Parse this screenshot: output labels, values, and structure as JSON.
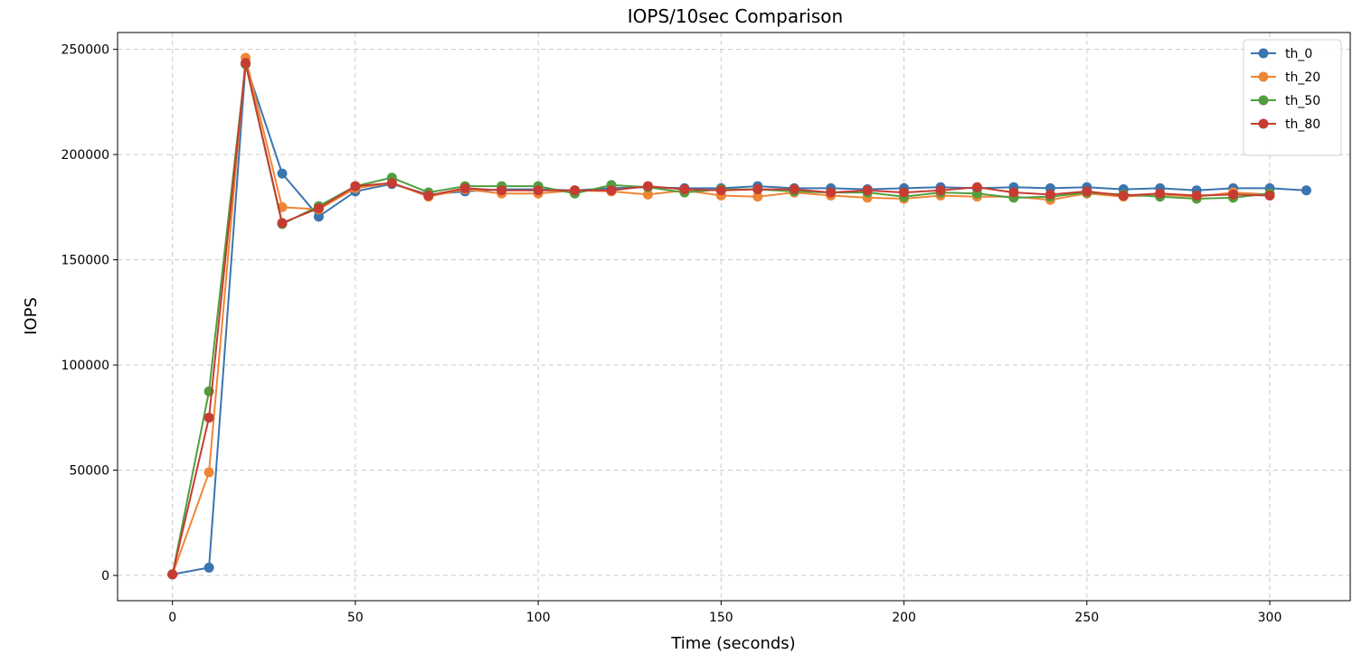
{
  "chart_data": {
    "type": "line",
    "title": "IOPS/10sec Comparison",
    "xlabel": "Time (seconds)",
    "ylabel": "IOPS",
    "xlim": [
      -15,
      322
    ],
    "ylim": [
      -12000,
      258000
    ],
    "xticks": [
      0,
      50,
      100,
      150,
      200,
      250,
      300
    ],
    "yticks": [
      0,
      50000,
      100000,
      150000,
      200000,
      250000
    ],
    "grid": true,
    "grid_style": "dashed",
    "legend_position": "top-right",
    "series": [
      {
        "name": "th_0",
        "color": "#3b75af",
        "x": [
          0,
          10,
          20,
          30,
          40,
          50,
          60,
          70,
          80,
          90,
          100,
          110,
          120,
          130,
          140,
          150,
          160,
          170,
          180,
          190,
          200,
          210,
          220,
          230,
          240,
          250,
          260,
          270,
          280,
          290,
          300,
          310
        ],
        "values": [
          500,
          3700,
          243000,
          191000,
          170500,
          182500,
          186000,
          181000,
          182500,
          183500,
          183500,
          183000,
          184000,
          184500,
          184000,
          184000,
          185000,
          184000,
          184000,
          183500,
          184000,
          184500,
          184000,
          184500,
          184000,
          184500,
          183500,
          184000,
          183000,
          184000,
          184000,
          183000
        ]
      },
      {
        "name": "th_20",
        "color": "#ef8636",
        "x": [
          0,
          10,
          20,
          30,
          40,
          50,
          60,
          70,
          80,
          90,
          100,
          110,
          120,
          130,
          140,
          150,
          160,
          170,
          180,
          190,
          200,
          210,
          220,
          230,
          240,
          250,
          260,
          270,
          280,
          290,
          300
        ],
        "values": [
          500,
          49000,
          246000,
          175000,
          174000,
          184000,
          186500,
          180000,
          183500,
          181500,
          181500,
          183000,
          182500,
          181000,
          183000,
          180500,
          180000,
          182000,
          180500,
          179500,
          179000,
          180500,
          180000,
          180000,
          178500,
          181500,
          180000,
          181000,
          180000,
          182000,
          181000
        ]
      },
      {
        "name": "th_50",
        "color": "#519e3e",
        "x": [
          0,
          10,
          20,
          30,
          40,
          50,
          60,
          70,
          80,
          90,
          100,
          110,
          120,
          130,
          140,
          150,
          160,
          170,
          180,
          190,
          200,
          210,
          220,
          230,
          240,
          250,
          260,
          270,
          280,
          290,
          300
        ],
        "values": [
          500,
          87500,
          243000,
          167000,
          175500,
          185000,
          189000,
          182000,
          185000,
          185000,
          185000,
          181500,
          185500,
          184500,
          182000,
          183500,
          183500,
          182500,
          182000,
          182000,
          180000,
          182000,
          181500,
          179500,
          180000,
          182000,
          181000,
          180000,
          179000,
          179500,
          181500
        ]
      },
      {
        "name": "th_80",
        "color": "#c63c32",
        "x": [
          0,
          10,
          20,
          30,
          40,
          50,
          60,
          70,
          80,
          90,
          100,
          110,
          120,
          130,
          140,
          150,
          160,
          170,
          180,
          190,
          200,
          210,
          220,
          230,
          240,
          250,
          260,
          270,
          280,
          290,
          300
        ],
        "values": [
          500,
          75000,
          243500,
          167500,
          174500,
          185000,
          186500,
          180500,
          184000,
          183000,
          183000,
          183000,
          183000,
          185000,
          183500,
          183000,
          183500,
          183500,
          182000,
          183000,
          182000,
          183000,
          184500,
          182000,
          181000,
          182500,
          180500,
          181500,
          180500,
          181000,
          180500
        ]
      }
    ]
  }
}
